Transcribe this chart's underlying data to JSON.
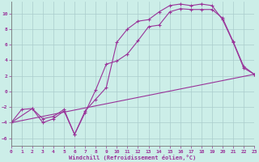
{
  "background_color": "#cceee8",
  "grid_color": "#aacccc",
  "line_color": "#993399",
  "xlim": [
    0,
    23
  ],
  "ylim": [
    -7,
    11.5
  ],
  "yticks": [
    -6,
    -4,
    -2,
    0,
    2,
    4,
    6,
    8,
    10
  ],
  "xticks": [
    0,
    1,
    2,
    3,
    4,
    5,
    6,
    7,
    8,
    9,
    10,
    11,
    12,
    13,
    14,
    15,
    16,
    17,
    18,
    19,
    20,
    21,
    22,
    23
  ],
  "xlabel": "Windchill (Refroidissement éolien,°C)",
  "line1_x": [
    0,
    1,
    2,
    3,
    4,
    5,
    6,
    7,
    8,
    9,
    10,
    11,
    12,
    13,
    14,
    15,
    16,
    17,
    18,
    19,
    20,
    21,
    22,
    23
  ],
  "line1_y": [
    -4,
    -2.3,
    -2.2,
    -3.5,
    -3.2,
    -2.3,
    -5.5,
    -2.5,
    -1.0,
    0.5,
    6.3,
    8.0,
    9.0,
    9.2,
    10.2,
    11.0,
    11.2,
    11.0,
    11.2,
    11.0,
    9.2,
    6.3,
    3.0,
    2.2
  ],
  "line2_x": [
    0,
    2,
    3,
    4,
    5,
    6,
    7,
    8,
    9,
    10,
    11,
    12,
    13,
    14,
    15,
    16,
    17,
    18,
    19,
    20,
    21,
    22,
    23
  ],
  "line2_y": [
    -4,
    -2.2,
    -4.0,
    -3.5,
    -2.5,
    -5.5,
    -2.7,
    0.2,
    3.5,
    3.9,
    4.8,
    6.5,
    8.3,
    8.5,
    10.2,
    10.6,
    10.5,
    10.5,
    10.5,
    9.4,
    6.4,
    3.2,
    2.2
  ],
  "line3_x": [
    0,
    23
  ],
  "line3_y": [
    -4.0,
    2.2
  ]
}
